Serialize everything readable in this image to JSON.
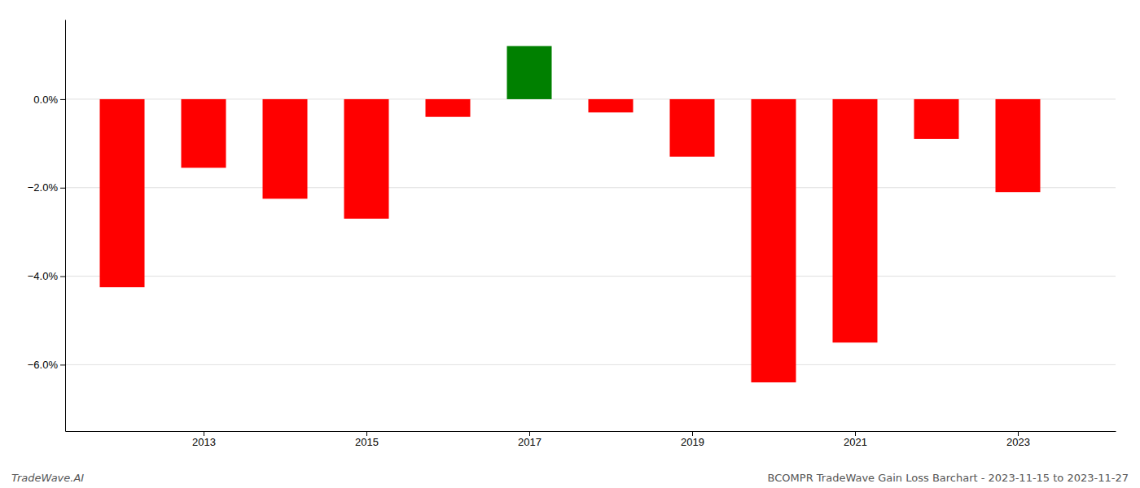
{
  "chart_data": {
    "type": "bar",
    "title": "BCOMPR TradeWave Gain Loss Barchart - 2023-11-15 to 2023-11-27",
    "annotations": [
      "TradeWave.AI"
    ],
    "x": [
      2012,
      2013,
      2014,
      2015,
      2016,
      2017,
      2018,
      2019,
      2020,
      2021,
      2022,
      2023
    ],
    "values": [
      -0.0425,
      -0.0155,
      -0.0225,
      -0.027,
      -0.004,
      0.012,
      -0.003,
      -0.013,
      -0.064,
      -0.055,
      -0.009,
      -0.021
    ],
    "colors": [
      "#ff0000",
      "#ff0000",
      "#ff0000",
      "#ff0000",
      "#ff0000",
      "#008000",
      "#ff0000",
      "#ff0000",
      "#ff0000",
      "#ff0000",
      "#ff0000",
      "#ff0000"
    ],
    "xlim": [
      2011.3,
      2024.2
    ],
    "xticks": [
      2013,
      2015,
      2017,
      2019,
      2021,
      2023
    ],
    "ylim": [
      -0.075,
      0.018
    ],
    "yticks": [
      {
        "value": -0.06,
        "label": "−6.0%"
      },
      {
        "value": -0.04,
        "label": "−4.0%"
      },
      {
        "value": -0.02,
        "label": "−2.0%"
      },
      {
        "value": 0,
        "label": "0.0%"
      }
    ],
    "grid": true
  }
}
